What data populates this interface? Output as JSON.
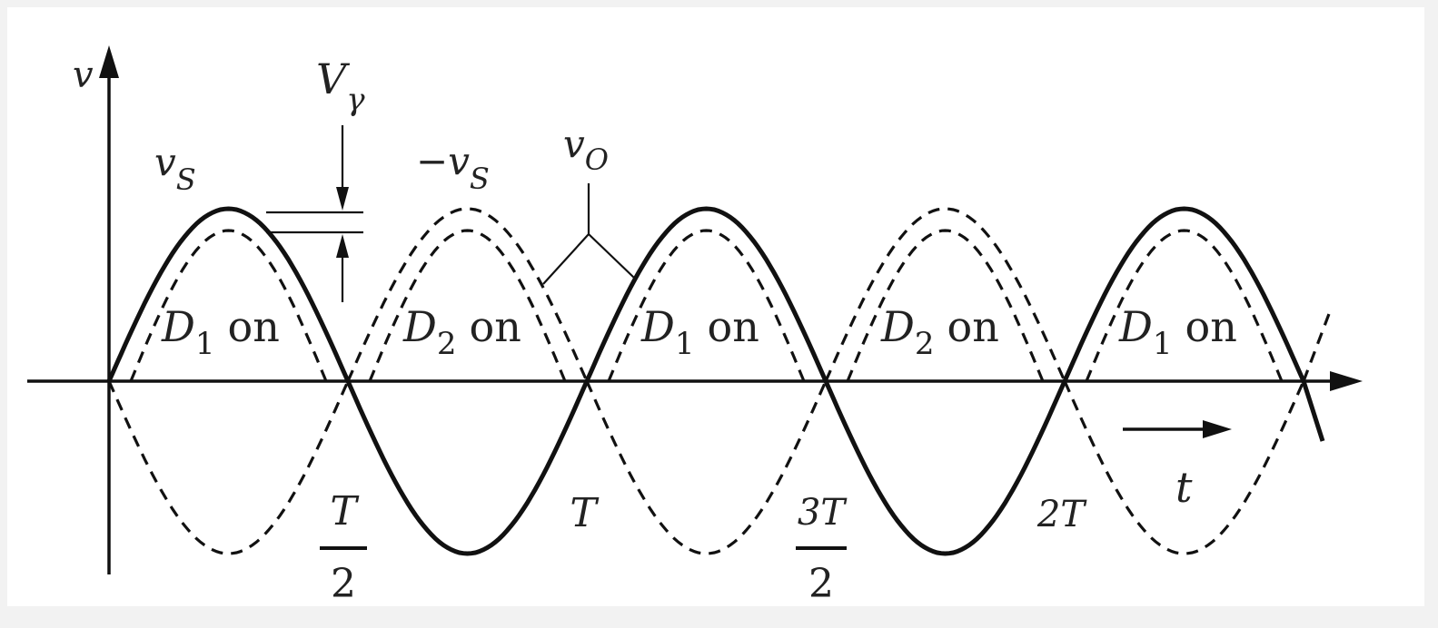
{
  "axis": {
    "y_label": "v",
    "x_label": "t"
  },
  "curves": {
    "vs": {
      "label_main": "v",
      "label_sub": "S"
    },
    "neg_vs": {
      "label_main": "−v",
      "label_sub": "S"
    },
    "vo": {
      "label_main": "v",
      "label_sub": "O"
    }
  },
  "vgamma": {
    "label_main": "V",
    "label_sub": "γ"
  },
  "regions": [
    {
      "diode": "D",
      "sub": "1",
      "state": "on"
    },
    {
      "diode": "D",
      "sub": "2",
      "state": "on"
    },
    {
      "diode": "D",
      "sub": "1",
      "state": "on"
    },
    {
      "diode": "D",
      "sub": "2",
      "state": "on"
    },
    {
      "diode": "D",
      "sub": "1",
      "state": "on"
    }
  ],
  "ticks": {
    "half_T": {
      "num": "T",
      "den": "2"
    },
    "T": "T",
    "three_half_T": {
      "num": "3T",
      "den": "2"
    },
    "two_T": "2T"
  },
  "colors": {
    "ink": "#111111",
    "background": "#ffffff",
    "frame": "#f2f2f2"
  }
}
